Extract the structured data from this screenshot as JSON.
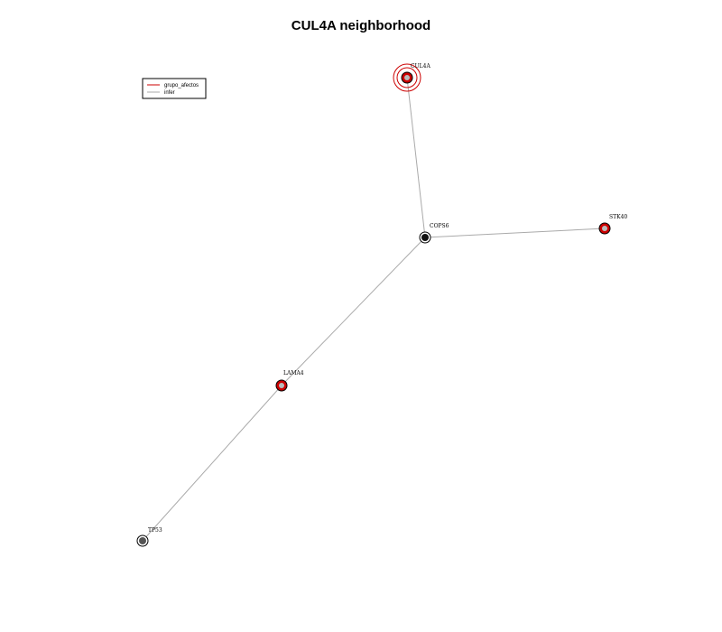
{
  "title": "CUL4A neighborhood",
  "legend": [
    {
      "label": "grupo_afectos",
      "color": "#cc0000"
    },
    {
      "label": "infer",
      "color": "#aaaaaa"
    }
  ],
  "nodes": [
    {
      "id": "CUL4A",
      "label": "CUL4A",
      "kind": "query"
    },
    {
      "id": "COPS6",
      "label": "COPS6",
      "kind": "hub"
    },
    {
      "id": "STK40",
      "label": "STK40",
      "kind": "affected"
    },
    {
      "id": "LAMA4",
      "label": "LAMA4",
      "kind": "affected"
    },
    {
      "id": "TP53",
      "label": "TP53",
      "kind": "neutral"
    }
  ],
  "edges": [
    {
      "source": "CUL4A",
      "target": "COPS6",
      "type": "infer"
    },
    {
      "source": "COPS6",
      "target": "STK40",
      "type": "infer"
    },
    {
      "source": "COPS6",
      "target": "LAMA4",
      "type": "infer"
    },
    {
      "source": "LAMA4",
      "target": "TP53",
      "type": "infer"
    }
  ],
  "colors": {
    "affected_fill": "#cc0000",
    "neutral_fill": "#555555",
    "hub_fill": "#111111",
    "edge": "#aaaaaa",
    "ring": "#cc0000"
  }
}
